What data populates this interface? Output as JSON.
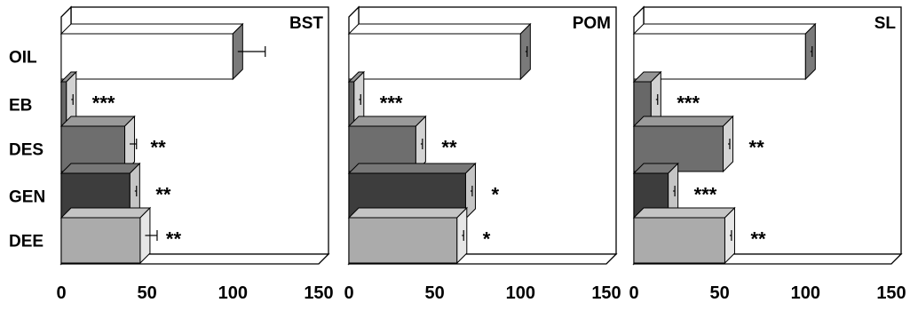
{
  "chart_data": {
    "type": "bar",
    "orientation": "horizontal",
    "style": "3d",
    "categories": [
      "OIL",
      "EB",
      "DES",
      "GEN",
      "DEE"
    ],
    "xlim": [
      0,
      150
    ],
    "xticks": [
      0,
      50,
      100,
      150
    ],
    "grid": false,
    "panels": [
      {
        "title": "BST",
        "values": [
          100,
          3,
          37,
          40,
          46
        ],
        "errors": [
          16,
          1,
          4,
          1,
          7
        ],
        "annotations": [
          "",
          "***",
          "**",
          "**",
          "**"
        ]
      },
      {
        "title": "POM",
        "values": [
          100,
          3,
          39,
          68,
          63
        ],
        "errors": [
          1,
          1,
          1,
          1,
          1
        ],
        "annotations": [
          "",
          "***",
          "**",
          "*",
          "*"
        ]
      },
      {
        "title": "SL",
        "values": [
          100,
          10,
          52,
          20,
          53
        ],
        "errors": [
          1,
          1,
          1,
          1,
          1
        ],
        "annotations": [
          "",
          "***",
          "**",
          "***",
          "**"
        ]
      }
    ],
    "colors": {
      "OIL": "#ffffff",
      "EB": "#686868",
      "DES": "#6e6e6e",
      "GEN": "#3d3d3d",
      "DEE": "#ababab"
    }
  }
}
